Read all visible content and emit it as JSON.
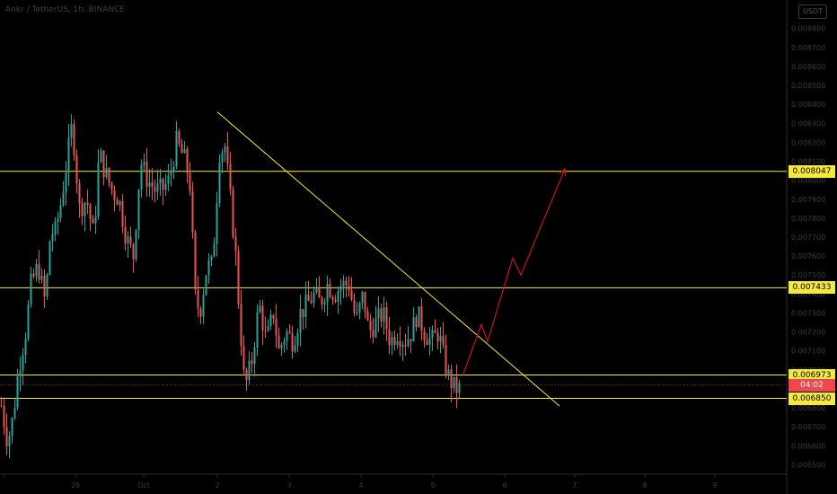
{
  "header": {
    "title": "Ankr / TetherUS, 1h, BINANCE"
  },
  "scale_badge": "USDT",
  "colors": {
    "background": "#000000",
    "up": "#26a69a",
    "down": "#ef5350",
    "level": "#f5ea3a",
    "projection": "#c4161c",
    "last_price": "#f0474e"
  },
  "chart_data": {
    "type": "candlestick",
    "title": "Ankr / TetherUS, 1h, BINANCE",
    "xlabel": "",
    "ylabel": "",
    "ylim": [
      0.00645,
      0.00895
    ],
    "y_ticks": [
      "0.008900",
      "0.008800",
      "0.008700",
      "0.008600",
      "0.008500",
      "0.008400",
      "0.008300",
      "0.008200",
      "0.008100",
      "0.008000",
      "0.007900",
      "0.007800",
      "0.007700",
      "0.007600",
      "0.007500",
      "0.007400",
      "0.007300",
      "0.007200",
      "0.007100",
      "0.007000",
      "0.006900",
      "0.006800",
      "0.006700",
      "0.006600",
      "0.006500"
    ],
    "x_ticks": [
      "",
      "28",
      "Oct",
      "2",
      "3",
      "4",
      "5",
      "6",
      "7",
      "8",
      "9"
    ],
    "grid": false,
    "levels": [
      {
        "label": "0.008047",
        "value": 0.008047
      },
      {
        "label": "0.007433",
        "value": 0.007433
      },
      {
        "label": "0.006973",
        "value": 0.006973
      },
      {
        "label": "0.006850",
        "value": 0.00685
      }
    ],
    "last_price": {
      "value": 0.00692,
      "countdown": "04:02"
    },
    "trendline": [
      [
        242,
        0.00836
      ],
      [
        623,
        0.00681
      ]
    ],
    "projection": [
      [
        516,
        0.00698
      ],
      [
        536,
        0.00724
      ],
      [
        543,
        0.00715
      ],
      [
        571,
        0.00759
      ],
      [
        580,
        0.0075
      ],
      [
        629,
        0.00806
      ]
    ],
    "anchors": [
      [
        0,
        0.00684
      ],
      [
        8,
        0.00662
      ],
      [
        14,
        0.00675
      ],
      [
        20,
        0.007
      ],
      [
        28,
        0.0072
      ],
      [
        34,
        0.00745
      ],
      [
        42,
        0.00755
      ],
      [
        50,
        0.00735
      ],
      [
        56,
        0.00775
      ],
      [
        60,
        0.0077
      ],
      [
        68,
        0.0079
      ],
      [
        74,
        0.0081
      ],
      [
        80,
        0.0083
      ],
      [
        88,
        0.00785
      ],
      [
        96,
        0.0079
      ],
      [
        104,
        0.0077
      ],
      [
        110,
        0.00815
      ],
      [
        116,
        0.00805
      ],
      [
        124,
        0.00795
      ],
      [
        132,
        0.0079
      ],
      [
        140,
        0.0077
      ],
      [
        148,
        0.0076
      ],
      [
        156,
        0.0081
      ],
      [
        164,
        0.008
      ],
      [
        172,
        0.00795
      ],
      [
        180,
        0.00795
      ],
      [
        188,
        0.008
      ],
      [
        196,
        0.0082
      ],
      [
        206,
        0.0081
      ],
      [
        212,
        0.00795
      ],
      [
        216,
        0.0074
      ],
      [
        222,
        0.0073
      ],
      [
        230,
        0.00755
      ],
      [
        236,
        0.00755
      ],
      [
        244,
        0.00815
      ],
      [
        250,
        0.00818
      ],
      [
        256,
        0.0079
      ],
      [
        262,
        0.0076
      ],
      [
        266,
        0.0073
      ],
      [
        272,
        0.0069
      ],
      [
        280,
        0.00705
      ],
      [
        288,
        0.00735
      ],
      [
        296,
        0.00715
      ],
      [
        304,
        0.0073
      ],
      [
        310,
        0.0071
      ],
      [
        318,
        0.0072
      ],
      [
        326,
        0.00715
      ],
      [
        334,
        0.0073
      ],
      [
        342,
        0.00735
      ],
      [
        350,
        0.0074
      ],
      [
        356,
        0.00735
      ],
      [
        364,
        0.00745
      ],
      [
        372,
        0.0074
      ],
      [
        380,
        0.00745
      ],
      [
        388,
        0.00745
      ],
      [
        396,
        0.00725
      ],
      [
        404,
        0.0074
      ],
      [
        410,
        0.0072
      ],
      [
        418,
        0.00725
      ],
      [
        426,
        0.0073
      ],
      [
        434,
        0.00715
      ],
      [
        442,
        0.0072
      ],
      [
        450,
        0.00715
      ],
      [
        458,
        0.0072
      ],
      [
        464,
        0.0073
      ],
      [
        472,
        0.0072
      ],
      [
        480,
        0.00715
      ],
      [
        488,
        0.0072
      ],
      [
        494,
        0.00705
      ],
      [
        500,
        0.00695
      ],
      [
        506,
        0.0069
      ],
      [
        512,
        0.0069
      ]
    ]
  }
}
